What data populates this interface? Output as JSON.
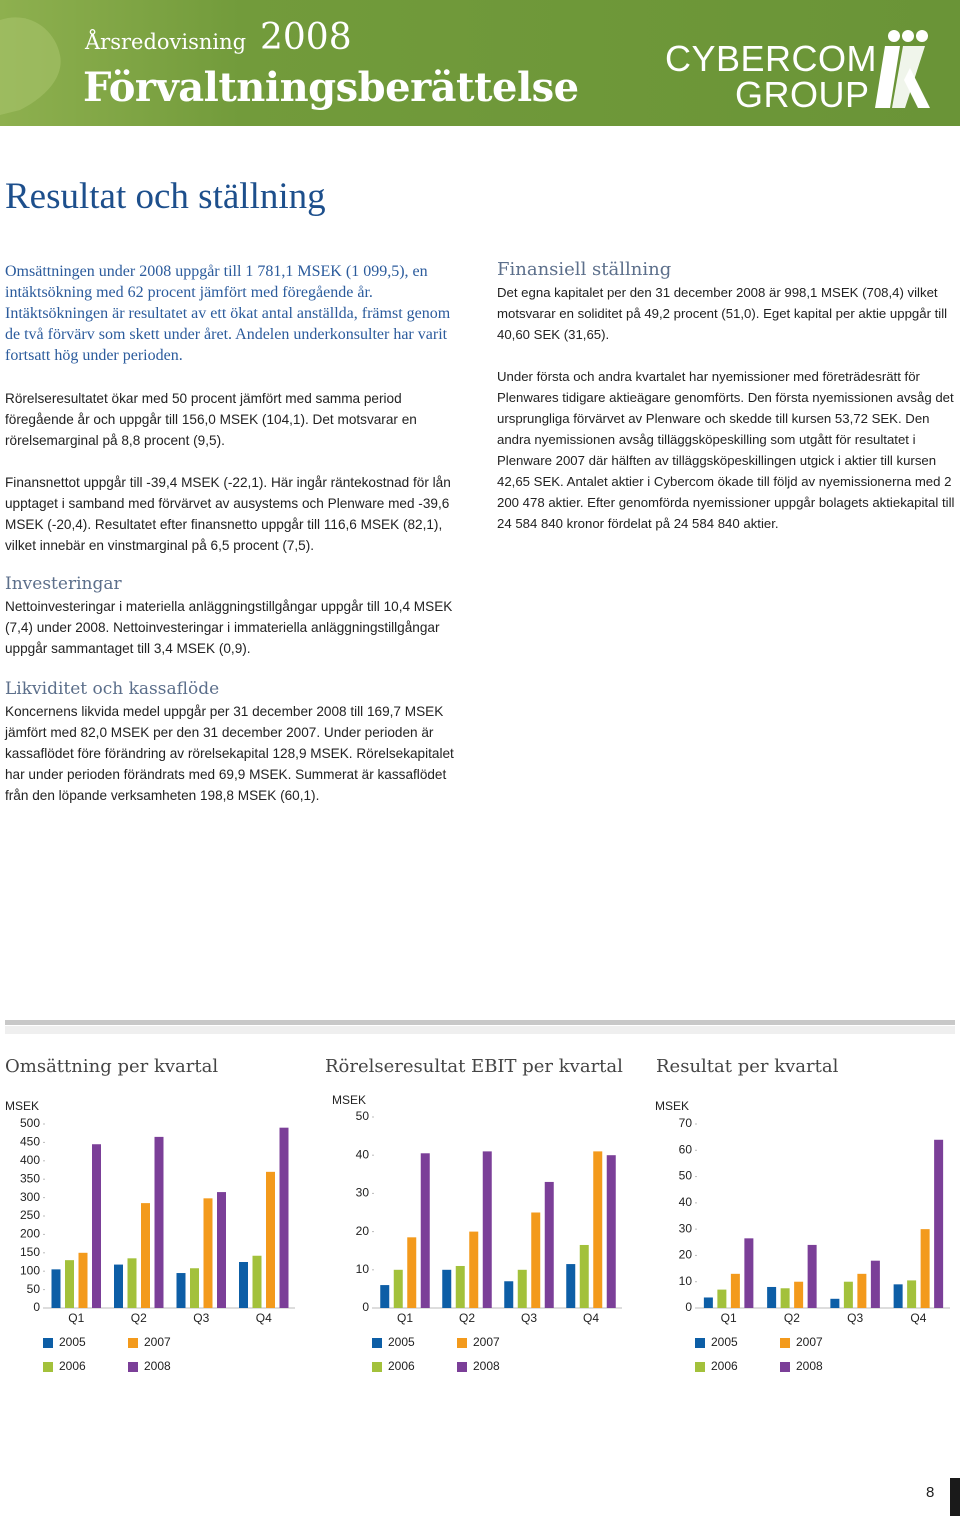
{
  "header": {
    "report": "Årsredovisning",
    "year": "2008",
    "title": "Förvaltningsberättelse",
    "logo_line1": "CYBERCOM",
    "logo_line2": "GROUP"
  },
  "page_title": "Resultat och ställning",
  "left": {
    "intro": "Omsättningen under 2008 uppgår till 1 781,1 MSEK (1 099,5), en intäktsökning med 62 procent jämfört med föregående år. Intäktsökningen är resultatet av ett ökat antal anställda, främst genom de två förvärv som skett under året. Andelen underkonsulter har varit fortsatt hög under perioden.",
    "paragraphs": [
      "Rörelseresultatet ökar med 50 procent jämfört med samma period föregående år och uppgår till 156,0 MSEK (104,1). Det motsvarar en rörelsemarginal på 8,8 procent (9,5).",
      "Finansnettot uppgår till -39,4 MSEK (-22,1). Här ingår räntekostnad för lån upptaget i samband med förvärvet av ausystems och Plenware med -39,6 MSEK (-20,4). Resultatet efter finansnetto uppgår till 116,6 MSEK (82,1), vilket innebär en vinstmarginal på 6,5 procent (7,5)."
    ],
    "sections": [
      {
        "heading": "Investeringar",
        "body": "Nettoinvesteringar i materiella anläggningstillgångar uppgår till 10,4 MSEK (7,4) under 2008. Nettoinvesteringar i immateriella anläggningstillgångar uppgår sammantaget till 3,4 MSEK (0,9)."
      },
      {
        "heading": "Likviditet och kassaflöde",
        "body": "Koncernens likvida medel uppgår per 31 december 2008 till 169,7 MSEK jämfört med 82,0 MSEK per den 31 december 2007. Under perioden är kassaflödet före förändring av rörelsekapital 128,9 MSEK. Rörelsekapitalet har under perioden förändrats med 69,9 MSEK. Summerat är kassaflödet från den löpande verksamheten 198,8 MSEK (60,1)."
      }
    ]
  },
  "right": {
    "heading": "Finansiell ställning",
    "paragraphs": [
      "Det egna kapitalet per den 31 december 2008 är 998,1 MSEK (708,4) vilket motsvarar en soliditet på 49,2 procent (51,0). Eget kapital per aktie uppgår till 40,60 SEK (31,65).",
      "Under första och andra kvartalet har nyemissioner med företrädesrätt för Plenwares tidigare aktieägare genomförts. Den första nyemissionen avsåg det ursprungliga förvärvet av Plenware och skedde till kursen 53,72 SEK. Den andra nyemissionen avsåg tilläggsköpeskilling som utgått för resultatet i Plenware 2007 där hälften av tilläggsköpeskillingen utgick i aktier till kursen 42,65 SEK. Antalet aktier i Cybercom ökade till följd av nyemissionerna med 2 200 478 aktier. Efter genomförda nyemissioner uppgår bolagets aktiekapital till 24 584 840 kronor fördelat på 24 584 840 aktier."
    ]
  },
  "chart_data": [
    {
      "type": "bar",
      "title": "Omsättning per kvartal",
      "y_label": "MSEK",
      "categories": [
        "Q1",
        "Q2",
        "Q3",
        "Q4"
      ],
      "series": [
        {
          "name": "2005",
          "color": "#0d5ea6",
          "values": [
            105,
            118,
            95,
            125
          ]
        },
        {
          "name": "2006",
          "color": "#a3c13b",
          "values": [
            130,
            135,
            108,
            142
          ]
        },
        {
          "name": "2007",
          "color": "#f39a1c",
          "values": [
            150,
            285,
            298,
            370
          ]
        },
        {
          "name": "2008",
          "color": "#7b3f98",
          "values": [
            445,
            465,
            315,
            490
          ]
        }
      ],
      "ylim": [
        0,
        500
      ],
      "yticks": [
        0,
        50,
        100,
        150,
        200,
        250,
        300,
        350,
        400,
        450,
        500
      ],
      "grid": false
    },
    {
      "type": "bar",
      "title": "Rörelseresultat EBIT per kvartal",
      "y_label": "MSEK",
      "categories": [
        "Q1",
        "Q2",
        "Q3",
        "Q4"
      ],
      "series": [
        {
          "name": "2005",
          "color": "#0d5ea6",
          "values": [
            6,
            10,
            7,
            11.5
          ]
        },
        {
          "name": "2006",
          "color": "#a3c13b",
          "values": [
            10,
            11,
            10,
            16.5
          ]
        },
        {
          "name": "2007",
          "color": "#f39a1c",
          "values": [
            18.5,
            20,
            25,
            41
          ]
        },
        {
          "name": "2008",
          "color": "#7b3f98",
          "values": [
            40.5,
            41,
            33,
            40
          ]
        }
      ],
      "ylim": [
        0,
        50
      ],
      "yticks": [
        0,
        10,
        20,
        30,
        40,
        50
      ],
      "grid": false
    },
    {
      "type": "bar",
      "title": "Resultat per kvartal",
      "y_label": "MSEK",
      "categories": [
        "Q1",
        "Q2",
        "Q3",
        "Q4"
      ],
      "series": [
        {
          "name": "2005",
          "color": "#0d5ea6",
          "values": [
            4,
            8,
            3.5,
            9
          ]
        },
        {
          "name": "2006",
          "color": "#a3c13b",
          "values": [
            7,
            7.5,
            10,
            10.5
          ]
        },
        {
          "name": "2007",
          "color": "#f39a1c",
          "values": [
            13,
            10,
            13,
            30
          ]
        },
        {
          "name": "2008",
          "color": "#7b3f98",
          "values": [
            26.5,
            24,
            18,
            64
          ]
        }
      ],
      "ylim": [
        0,
        70
      ],
      "yticks": [
        0,
        10,
        20,
        30,
        40,
        50,
        60,
        70
      ],
      "grid": false
    }
  ],
  "page_number": "8"
}
